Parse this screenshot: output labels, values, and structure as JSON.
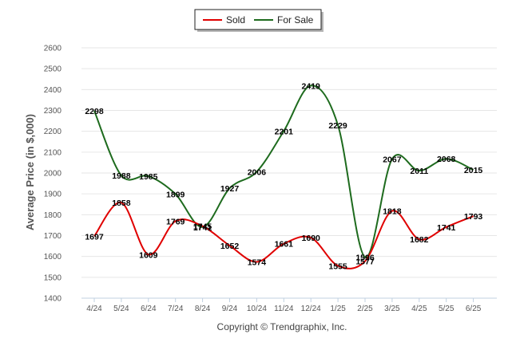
{
  "chart_data": {
    "type": "line",
    "ylabel": "Average Price (in $,000)",
    "xlabel": "",
    "credit": "Copyright © Trendgraphix, Inc.",
    "categories": [
      "4/24",
      "5/24",
      "6/24",
      "7/24",
      "8/24",
      "9/24",
      "10/24",
      "11/24",
      "12/24",
      "1/25",
      "2/25",
      "3/25",
      "4/25",
      "5/25",
      "6/25"
    ],
    "yticks": [
      1400,
      1500,
      1600,
      1700,
      1800,
      1900,
      2000,
      2100,
      2200,
      2300,
      2400,
      2500,
      2600
    ],
    "ylim": [
      1400,
      2600
    ],
    "grid": true,
    "legend_position": "top-center",
    "series": [
      {
        "name": "Sold",
        "color": "#e00000",
        "values": [
          1697,
          1858,
          1609,
          1769,
          1745,
          1652,
          1574,
          1661,
          1690,
          1555,
          1577,
          1818,
          1682,
          1741,
          1793
        ]
      },
      {
        "name": "For Sale",
        "color": "#1e6b1e",
        "values": [
          2298,
          1988,
          1985,
          1899,
          1741,
          1927,
          2006,
          2201,
          2419,
          2229,
          1596,
          2067,
          2011,
          2068,
          2015
        ]
      }
    ]
  }
}
